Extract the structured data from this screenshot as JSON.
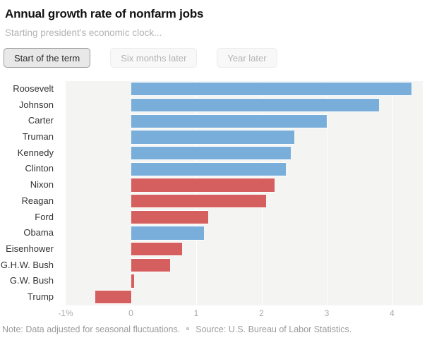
{
  "header": {
    "title": "Annual growth rate of nonfarm jobs",
    "subtitle": "Starting president's economic clock..."
  },
  "tabs": [
    {
      "label": "Start of the term",
      "active": true
    },
    {
      "label": "Six months later",
      "active": false
    },
    {
      "label": "Year later",
      "active": false
    }
  ],
  "chart_data": {
    "type": "bar",
    "orientation": "horizontal",
    "title": "Annual growth rate of nonfarm jobs",
    "subtitle": "Starting president's economic clock...",
    "categories": [
      "Roosevelt",
      "Johnson",
      "Carter",
      "Truman",
      "Kennedy",
      "Clinton",
      "Nixon",
      "Reagan",
      "Ford",
      "Obama",
      "Eisenhower",
      "G.H.W. Bush",
      "G.W. Bush",
      "Trump"
    ],
    "values": [
      4.3,
      3.8,
      3.0,
      2.5,
      2.45,
      2.37,
      2.2,
      2.07,
      1.18,
      1.12,
      0.78,
      0.6,
      0.05,
      -0.55
    ],
    "parties": [
      "D",
      "D",
      "D",
      "D",
      "D",
      "D",
      "R",
      "R",
      "R",
      "D",
      "R",
      "R",
      "R",
      "R"
    ],
    "unit": "percent",
    "xlabel": "",
    "ylabel": "",
    "xlim": [
      -1,
      4.47
    ],
    "x_tick_values": [
      -1,
      0,
      1,
      2,
      3,
      4
    ],
    "x_tick_labels": [
      "-1%",
      "0",
      "1",
      "2",
      "3",
      "4"
    ],
    "grid": true,
    "legend": false,
    "colors": {
      "democrat_bar": "#79aedb",
      "republican_bar": "#d55e5e",
      "plot_background": "#f4f4f3",
      "gridline": "#ffffff"
    }
  },
  "footer": {
    "note": "Note: Data adjusted for seasonal fluctuations.",
    "source": "Source: U.S. Bureau of Labor Statistics."
  }
}
